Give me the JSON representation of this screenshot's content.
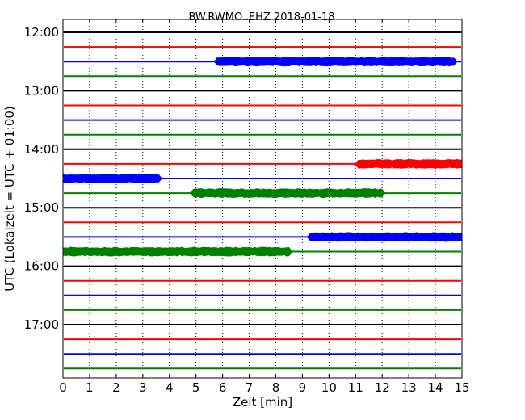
{
  "chart_data": {
    "type": "line",
    "title": "BW.RWMO..EHZ 2018-01-18",
    "xlabel": "Zeit  [min]",
    "ylabel": "UTC (Lokalzeit = UTC + 01:00)",
    "xlim": [
      0,
      15
    ],
    "x_ticks": [
      "0",
      "1",
      "2",
      "3",
      "4",
      "5",
      "6",
      "7",
      "8",
      "9",
      "10",
      "11",
      "12",
      "13",
      "14",
      "15"
    ],
    "y_tick_labels": [
      "12:00",
      "13:00",
      "14:00",
      "15:00",
      "16:00",
      "17:00"
    ],
    "grid": "vertical-dotted",
    "trace_colors": [
      "#000000",
      "#ff0000",
      "#0000ff",
      "#008000"
    ],
    "trace_interval_minutes": 15,
    "traces": [
      {
        "start": "12:00",
        "segments": []
      },
      {
        "start": "12:15",
        "segments": []
      },
      {
        "start": "12:30",
        "segments": [
          {
            "from": 5.8,
            "to": 14.7,
            "amplitude": "high"
          }
        ]
      },
      {
        "start": "12:45",
        "segments": []
      },
      {
        "start": "13:00",
        "segments": []
      },
      {
        "start": "13:15",
        "segments": []
      },
      {
        "start": "13:30",
        "segments": []
      },
      {
        "start": "13:45",
        "segments": []
      },
      {
        "start": "14:00",
        "segments": []
      },
      {
        "start": "14:15",
        "segments": [
          {
            "from": 11.1,
            "to": 15.0,
            "amplitude": "high"
          }
        ]
      },
      {
        "start": "14:30",
        "segments": [
          {
            "from": 0.0,
            "to": 3.6,
            "amplitude": "high"
          }
        ]
      },
      {
        "start": "14:45",
        "segments": [
          {
            "from": 4.9,
            "to": 12.0,
            "amplitude": "high"
          }
        ]
      },
      {
        "start": "15:00",
        "segments": []
      },
      {
        "start": "15:15",
        "segments": []
      },
      {
        "start": "15:30",
        "segments": [
          {
            "from": 9.3,
            "to": 15.0,
            "amplitude": "high"
          }
        ]
      },
      {
        "start": "15:45",
        "segments": [
          {
            "from": 0.0,
            "to": 8.5,
            "amplitude": "high"
          }
        ]
      },
      {
        "start": "16:00",
        "segments": []
      },
      {
        "start": "16:15",
        "segments": []
      },
      {
        "start": "16:30",
        "segments": []
      },
      {
        "start": "16:45",
        "segments": []
      },
      {
        "start": "17:00",
        "segments": []
      },
      {
        "start": "17:15",
        "segments": []
      },
      {
        "start": "17:30",
        "segments": []
      },
      {
        "start": "17:45",
        "segments": []
      }
    ]
  }
}
